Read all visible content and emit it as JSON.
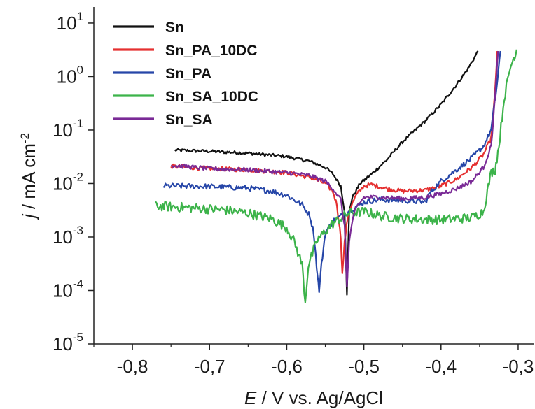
{
  "chart_data": {
    "type": "line",
    "title": "",
    "xlabel_italic": "E",
    "xlabel_rest": " / V vs. Ag/AgCl",
    "ylabel_italic": "j",
    "ylabel_rest": " / mA cm",
    "ylabel_exp": "-2",
    "xlim": [
      -0.85,
      -0.28
    ],
    "ylim_log10": [
      -5,
      1.3
    ],
    "y_scale": "log",
    "grid": false,
    "legend_position": "top-left",
    "x_ticks": [
      {
        "value": -0.8,
        "label": "-0,8"
      },
      {
        "value": -0.7,
        "label": "-0,7"
      },
      {
        "value": -0.6,
        "label": "-0,6"
      },
      {
        "value": -0.5,
        "label": "-0,5"
      },
      {
        "value": -0.4,
        "label": "-0,4"
      },
      {
        "value": -0.3,
        "label": "-0,3"
      }
    ],
    "y_ticks": [
      {
        "exp": -5,
        "base": "10",
        "sup": "-5"
      },
      {
        "exp": -4,
        "base": "10",
        "sup": "-4"
      },
      {
        "exp": -3,
        "base": "10",
        "sup": "-3"
      },
      {
        "exp": -2,
        "base": "10",
        "sup": "-2"
      },
      {
        "exp": -1,
        "base": "10",
        "sup": "-1"
      },
      {
        "exp": 0,
        "base": "10",
        "sup": "0"
      },
      {
        "exp": 1,
        "base": "10",
        "sup": "1"
      }
    ],
    "series": [
      {
        "name": "Sn",
        "color": "#111111",
        "noise": 0.06,
        "points": [
          [
            -0.745,
            0.042
          ],
          [
            -0.7,
            0.04
          ],
          [
            -0.65,
            0.037
          ],
          [
            -0.6,
            0.032
          ],
          [
            -0.57,
            0.026
          ],
          [
            -0.55,
            0.02
          ],
          [
            -0.54,
            0.015
          ],
          [
            -0.53,
            0.009
          ],
          [
            -0.525,
            0.003
          ],
          [
            -0.522,
            8e-05
          ],
          [
            -0.519,
            0.003
          ],
          [
            -0.515,
            0.0055
          ],
          [
            -0.505,
            0.01
          ],
          [
            -0.49,
            0.015
          ],
          [
            -0.47,
            0.028
          ],
          [
            -0.45,
            0.06
          ],
          [
            -0.42,
            0.15
          ],
          [
            -0.4,
            0.3
          ],
          [
            -0.38,
            0.7
          ],
          [
            -0.365,
            1.4
          ],
          [
            -0.355,
            2.5
          ],
          [
            -0.352,
            3.0
          ]
        ]
      },
      {
        "name": "Sn_PA_10DC",
        "color": "#e53030",
        "noise": 0.08,
        "points": [
          [
            -0.75,
            0.021
          ],
          [
            -0.7,
            0.019
          ],
          [
            -0.65,
            0.018
          ],
          [
            -0.6,
            0.016
          ],
          [
            -0.57,
            0.013
          ],
          [
            -0.55,
            0.01
          ],
          [
            -0.54,
            0.007
          ],
          [
            -0.535,
            0.004
          ],
          [
            -0.53,
            0.001
          ],
          [
            -0.528,
            0.0002
          ],
          [
            -0.525,
            0.0008
          ],
          [
            -0.52,
            0.003
          ],
          [
            -0.51,
            0.006
          ],
          [
            -0.5,
            0.009
          ],
          [
            -0.49,
            0.0095
          ],
          [
            -0.47,
            0.008
          ],
          [
            -0.45,
            0.0072
          ],
          [
            -0.42,
            0.0075
          ],
          [
            -0.4,
            0.009
          ],
          [
            -0.38,
            0.012
          ],
          [
            -0.36,
            0.02
          ],
          [
            -0.345,
            0.035
          ],
          [
            -0.335,
            0.07
          ],
          [
            -0.33,
            0.5
          ],
          [
            -0.327,
            3.0
          ]
        ]
      },
      {
        "name": "Sn_PA",
        "color": "#2646a8",
        "noise": 0.1,
        "points": [
          [
            -0.76,
            0.009
          ],
          [
            -0.7,
            0.0088
          ],
          [
            -0.65,
            0.0082
          ],
          [
            -0.62,
            0.0072
          ],
          [
            -0.6,
            0.006
          ],
          [
            -0.58,
            0.004
          ],
          [
            -0.57,
            0.0025
          ],
          [
            -0.565,
            0.0012
          ],
          [
            -0.56,
            0.00018
          ],
          [
            -0.558,
            0.0001
          ],
          [
            -0.555,
            0.0003
          ],
          [
            -0.55,
            0.0012
          ],
          [
            -0.54,
            0.002
          ],
          [
            -0.52,
            0.003
          ],
          [
            -0.5,
            0.0045
          ],
          [
            -0.48,
            0.005
          ],
          [
            -0.45,
            0.0048
          ],
          [
            -0.42,
            0.0045
          ],
          [
            -0.415,
            0.0065
          ],
          [
            -0.4,
            0.011
          ],
          [
            -0.38,
            0.018
          ],
          [
            -0.36,
            0.03
          ],
          [
            -0.345,
            0.05
          ],
          [
            -0.335,
            0.1
          ],
          [
            -0.328,
            0.6
          ],
          [
            -0.323,
            3.0
          ]
        ]
      },
      {
        "name": "Sn_SA_10DC",
        "color": "#3cb34a",
        "noise": 0.18,
        "points": [
          [
            -0.77,
            0.0038
          ],
          [
            -0.72,
            0.0035
          ],
          [
            -0.68,
            0.0032
          ],
          [
            -0.65,
            0.0028
          ],
          [
            -0.62,
            0.0022
          ],
          [
            -0.6,
            0.0015
          ],
          [
            -0.59,
            0.0008
          ],
          [
            -0.58,
            0.0003
          ],
          [
            -0.576,
            6e-05
          ],
          [
            -0.572,
            0.0003
          ],
          [
            -0.56,
            0.0009
          ],
          [
            -0.54,
            0.0018
          ],
          [
            -0.52,
            0.0028
          ],
          [
            -0.5,
            0.003
          ],
          [
            -0.48,
            0.0025
          ],
          [
            -0.45,
            0.0022
          ],
          [
            -0.4,
            0.0021
          ],
          [
            -0.36,
            0.0023
          ],
          [
            -0.345,
            0.003
          ],
          [
            -0.34,
            0.007
          ],
          [
            -0.335,
            0.016
          ],
          [
            -0.33,
            0.018
          ],
          [
            -0.325,
            0.05
          ],
          [
            -0.318,
            0.4
          ],
          [
            -0.31,
            1.5
          ],
          [
            -0.302,
            3.2
          ]
        ]
      },
      {
        "name": "Sn_SA",
        "color": "#7a2a96",
        "noise": 0.08,
        "points": [
          [
            -0.75,
            0.022
          ],
          [
            -0.7,
            0.019
          ],
          [
            -0.65,
            0.018
          ],
          [
            -0.6,
            0.016
          ],
          [
            -0.57,
            0.014
          ],
          [
            -0.55,
            0.011
          ],
          [
            -0.54,
            0.008
          ],
          [
            -0.53,
            0.005
          ],
          [
            -0.525,
            0.0015
          ],
          [
            -0.522,
            0.00012
          ],
          [
            -0.519,
            0.0008
          ],
          [
            -0.515,
            0.002
          ],
          [
            -0.51,
            0.0035
          ],
          [
            -0.5,
            0.0055
          ],
          [
            -0.48,
            0.0056
          ],
          [
            -0.45,
            0.0052
          ],
          [
            -0.42,
            0.0055
          ],
          [
            -0.4,
            0.0065
          ],
          [
            -0.38,
            0.008
          ],
          [
            -0.36,
            0.011
          ],
          [
            -0.345,
            0.02
          ],
          [
            -0.335,
            0.05
          ],
          [
            -0.33,
            0.4
          ],
          [
            -0.326,
            3.0
          ]
        ]
      }
    ]
  }
}
